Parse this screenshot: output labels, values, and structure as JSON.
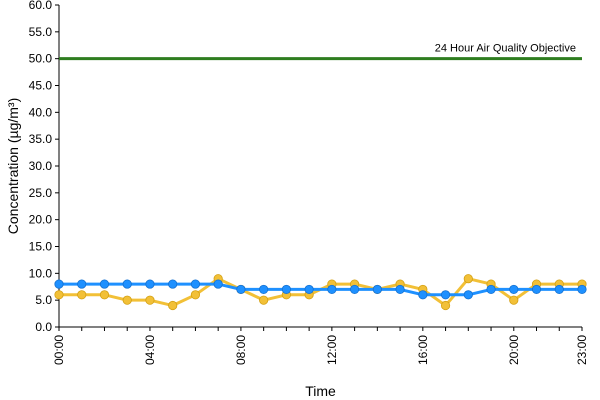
{
  "chart_data": {
    "type": "line",
    "title": "",
    "xlabel": "Time",
    "ylabel": "Concentration (µg/m³)",
    "ylim": [
      0,
      60
    ],
    "y_ticks": [
      "0.0",
      "5.0",
      "10.0",
      "15.0",
      "20.0",
      "25.0",
      "30.0",
      "35.0",
      "40.0",
      "45.0",
      "50.0",
      "55.0",
      "60.0"
    ],
    "x": [
      0,
      1,
      2,
      3,
      4,
      5,
      6,
      7,
      8,
      9,
      10,
      11,
      12,
      13,
      14,
      15,
      16,
      17,
      18,
      19,
      20,
      21,
      22,
      23
    ],
    "x_ticks": [
      {
        "hour": 0,
        "label": "00:00"
      },
      {
        "hour": 4,
        "label": "04:00"
      },
      {
        "hour": 8,
        "label": "08:00"
      },
      {
        "hour": 12,
        "label": "12:00"
      },
      {
        "hour": 16,
        "label": "16:00"
      },
      {
        "hour": 20,
        "label": "20:00"
      },
      {
        "hour": 23,
        "label": "23:00"
      }
    ],
    "series": [
      {
        "color": "#f2c037",
        "values": [
          6,
          6,
          6,
          5,
          5,
          4,
          6,
          9,
          7,
          5,
          6,
          6,
          8,
          8,
          7,
          8,
          7,
          4,
          9,
          8,
          5,
          8,
          8,
          8
        ]
      },
      {
        "color": "#1e90ff",
        "values": [
          8,
          8,
          8,
          8,
          8,
          8,
          8,
          8,
          7,
          7,
          7,
          7,
          7,
          7,
          7,
          7,
          6,
          6,
          6,
          7,
          7,
          7,
          7,
          7
        ]
      }
    ],
    "reference_line": {
      "value": 50,
      "label": "24 Hour Air Quality Objective",
      "color": "#2e7d1f"
    },
    "grid": false,
    "legend": "none"
  }
}
